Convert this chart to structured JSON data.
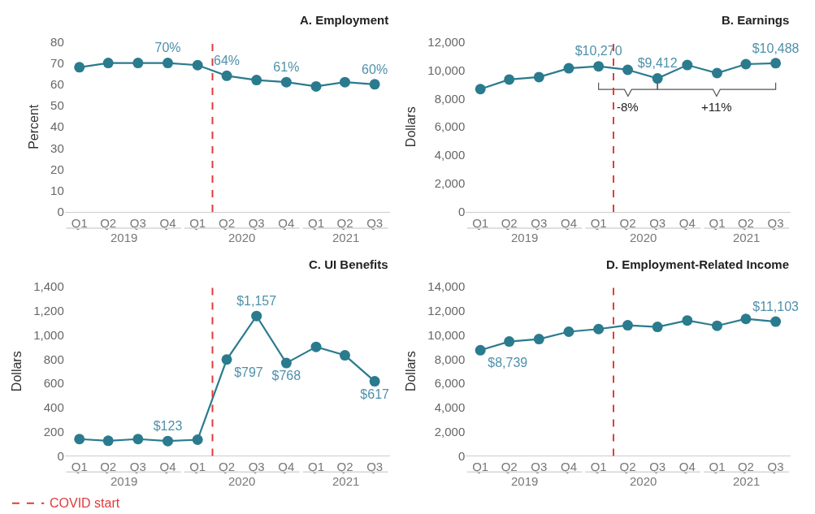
{
  "chart_data": [
    {
      "type": "line",
      "title": "A. Employment",
      "ylabel": "Percent",
      "marker": "circle",
      "x": [
        "2019-02-15",
        "2019-05-15",
        "2019-08-15",
        "2019-11-15",
        "2020-02-15",
        "2020-05-15",
        "2020-08-15",
        "2020-11-15",
        "2021-02-15",
        "2021-05-15",
        "2021-08-15"
      ],
      "xlim": [
        "2019-01-01",
        "2021-10-01"
      ],
      "xticks": [
        {
          "value": "2019-02-15",
          "label": "Q1"
        },
        {
          "value": "2019-05-15",
          "label": "Q2"
        },
        {
          "value": "2019-08-15",
          "label": "Q3"
        },
        {
          "value": "2019-11-15",
          "label": "Q4"
        },
        {
          "value": "2020-02-15",
          "label": "Q1"
        },
        {
          "value": "2020-05-15",
          "label": "Q2"
        },
        {
          "value": "2020-08-15",
          "label": "Q3"
        },
        {
          "value": "2020-11-15",
          "label": "Q4"
        },
        {
          "value": "2021-02-15",
          "label": "Q1"
        },
        {
          "value": "2021-05-15",
          "label": "Q2"
        },
        {
          "value": "2021-08-15",
          "label": "Q3"
        }
      ],
      "series": [
        {
          "color": "#2a7b8e",
          "values": [
            68,
            70,
            70,
            70,
            69,
            64,
            62,
            61,
            59,
            61,
            60
          ],
          "value_labels": [
            null,
            null,
            null,
            "70%",
            null,
            "64%",
            null,
            "61%",
            null,
            null,
            "60%"
          ]
        }
      ],
      "ylim": [
        0,
        80
      ],
      "yticks": [
        0,
        10,
        20,
        30,
        40,
        50,
        60,
        70,
        80
      ],
      "ref_lines": [
        {
          "axis": "x",
          "value": "2020-04-01",
          "label": "COVID start",
          "color": "#e03a3a",
          "line_style": "dashed"
        }
      ],
      "annotations": [
        "2019",
        "2020",
        "2021"
      ]
    },
    {
      "type": "line",
      "title": "B. Earnings",
      "ylabel": "Dollars",
      "marker": "circle",
      "x": [
        "2019-02-15",
        "2019-05-15",
        "2019-08-15",
        "2019-11-15",
        "2020-02-15",
        "2020-05-15",
        "2020-08-15",
        "2020-11-15",
        "2021-02-15",
        "2021-05-15",
        "2021-08-15"
      ],
      "xlim": [
        "2019-01-01",
        "2021-10-01"
      ],
      "xticks": [
        {
          "value": "2019-02-15",
          "label": "Q1"
        },
        {
          "value": "2019-05-15",
          "label": "Q2"
        },
        {
          "value": "2019-08-15",
          "label": "Q3"
        },
        {
          "value": "2019-11-15",
          "label": "Q4"
        },
        {
          "value": "2020-02-15",
          "label": "Q1"
        },
        {
          "value": "2020-05-15",
          "label": "Q2"
        },
        {
          "value": "2020-08-15",
          "label": "Q3"
        },
        {
          "value": "2020-11-15",
          "label": "Q4"
        },
        {
          "value": "2021-02-15",
          "label": "Q1"
        },
        {
          "value": "2021-05-15",
          "label": "Q2"
        },
        {
          "value": "2021-08-15",
          "label": "Q3"
        }
      ],
      "series": [
        {
          "color": "#2a7b8e",
          "values": [
            8660,
            9340,
            9510,
            10130,
            10270,
            10020,
            9412,
            10360,
            9790,
            10420,
            10488
          ],
          "value_labels": [
            null,
            null,
            null,
            null,
            "$10,270",
            null,
            "$9,412",
            null,
            null,
            null,
            "$10,488"
          ]
        }
      ],
      "ylim": [
        0,
        12000
      ],
      "yticks": [
        {
          "value": 0,
          "label": "0"
        },
        {
          "value": 2000,
          "label": "2,000"
        },
        {
          "value": 4000,
          "label": "4,000"
        },
        {
          "value": 6000,
          "label": "6,000"
        },
        {
          "value": 8000,
          "label": "8,000"
        },
        {
          "value": 10000,
          "label": "10,000"
        },
        {
          "value": 12000,
          "label": "12,000"
        }
      ],
      "ref_lines": [
        {
          "axis": "x",
          "value": "2020-04-01",
          "color": "#e03a3a",
          "line_style": "dashed"
        }
      ],
      "annotations": [
        "2019",
        "2020",
        "2021",
        "-8%",
        "+11%"
      ]
    },
    {
      "type": "line",
      "title": "C. UI Benefits",
      "ylabel": "Dollars",
      "marker": "circle",
      "x": [
        "2019-02-15",
        "2019-05-15",
        "2019-08-15",
        "2019-11-15",
        "2020-02-15",
        "2020-05-15",
        "2020-08-15",
        "2020-11-15",
        "2021-02-15",
        "2021-05-15",
        "2021-08-15"
      ],
      "xlim": [
        "2019-01-01",
        "2021-10-01"
      ],
      "xticks": [
        {
          "value": "2019-02-15",
          "label": "Q1"
        },
        {
          "value": "2019-05-15",
          "label": "Q2"
        },
        {
          "value": "2019-08-15",
          "label": "Q3"
        },
        {
          "value": "2019-11-15",
          "label": "Q4"
        },
        {
          "value": "2020-02-15",
          "label": "Q1"
        },
        {
          "value": "2020-05-15",
          "label": "Q2"
        },
        {
          "value": "2020-08-15",
          "label": "Q3"
        },
        {
          "value": "2020-11-15",
          "label": "Q4"
        },
        {
          "value": "2021-02-15",
          "label": "Q1"
        },
        {
          "value": "2021-05-15",
          "label": "Q2"
        },
        {
          "value": "2021-08-15",
          "label": "Q3"
        }
      ],
      "series": [
        {
          "color": "#2a7b8e",
          "values": [
            139,
            125,
            139,
            123,
            134,
            797,
            1157,
            768,
            902,
            832,
            617
          ],
          "value_labels": [
            null,
            null,
            null,
            "$123",
            null,
            "$797",
            "$1,157",
            "$768",
            null,
            null,
            "$617"
          ]
        }
      ],
      "ylim": [
        0,
        1400
      ],
      "yticks": [
        {
          "value": 0,
          "label": "0"
        },
        {
          "value": 200,
          "label": "200"
        },
        {
          "value": 400,
          "label": "400"
        },
        {
          "value": 600,
          "label": "600"
        },
        {
          "value": 800,
          "label": "800"
        },
        {
          "value": 1000,
          "label": "1,000"
        },
        {
          "value": 1200,
          "label": "1,200"
        },
        {
          "value": 1400,
          "label": "1,400"
        }
      ],
      "ref_lines": [
        {
          "axis": "x",
          "value": "2020-04-01",
          "color": "#e03a3a",
          "line_style": "dashed"
        }
      ],
      "annotations": [
        "2019",
        "2020",
        "2021"
      ]
    },
    {
      "type": "line",
      "title": "D. Employment-Related Income",
      "ylabel": "Dollars",
      "marker": "circle",
      "x": [
        "2019-02-15",
        "2019-05-15",
        "2019-08-15",
        "2019-11-15",
        "2020-02-15",
        "2020-05-15",
        "2020-08-15",
        "2020-11-15",
        "2021-02-15",
        "2021-05-15",
        "2021-08-15"
      ],
      "xlim": [
        "2019-01-01",
        "2021-10-01"
      ],
      "xticks": [
        {
          "value": "2019-02-15",
          "label": "Q1"
        },
        {
          "value": "2019-05-15",
          "label": "Q2"
        },
        {
          "value": "2019-08-15",
          "label": "Q3"
        },
        {
          "value": "2019-11-15",
          "label": "Q4"
        },
        {
          "value": "2020-02-15",
          "label": "Q1"
        },
        {
          "value": "2020-05-15",
          "label": "Q2"
        },
        {
          "value": "2020-08-15",
          "label": "Q3"
        },
        {
          "value": "2020-11-15",
          "label": "Q4"
        },
        {
          "value": "2021-02-15",
          "label": "Q1"
        },
        {
          "value": "2021-05-15",
          "label": "Q2"
        },
        {
          "value": "2021-08-15",
          "label": "Q3"
        }
      ],
      "series": [
        {
          "color": "#2a7b8e",
          "values": [
            8739,
            9460,
            9660,
            10270,
            10490,
            10800,
            10670,
            11200,
            10760,
            11330,
            11103
          ],
          "value_labels": [
            "$8,739",
            null,
            null,
            null,
            null,
            null,
            null,
            null,
            null,
            null,
            "$11,103"
          ]
        }
      ],
      "ylim": [
        0,
        14000
      ],
      "yticks": [
        {
          "value": 0,
          "label": "0"
        },
        {
          "value": 2000,
          "label": "2,000"
        },
        {
          "value": 4000,
          "label": "4,000"
        },
        {
          "value": 6000,
          "label": "6,000"
        },
        {
          "value": 8000,
          "label": "8,000"
        },
        {
          "value": 10000,
          "label": "10,000"
        },
        {
          "value": 12000,
          "label": "12,000"
        },
        {
          "value": 14000,
          "label": "14,000"
        }
      ],
      "ref_lines": [
        {
          "axis": "x",
          "value": "2020-04-01",
          "color": "#e03a3a",
          "line_style": "dashed"
        }
      ],
      "annotations": [
        "2019",
        "2020",
        "2021"
      ]
    }
  ]
}
